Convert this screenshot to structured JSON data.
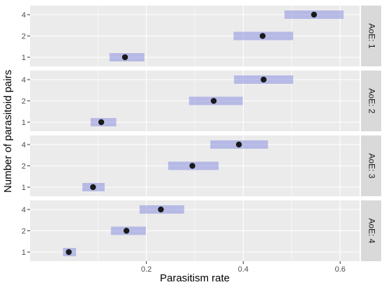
{
  "chart_data": {
    "type": "scatter",
    "xlabel": "Parasitism rate",
    "ylabel": "Number of parasitoid pairs",
    "xlim": [
      -0.04,
      0.64
    ],
    "x_ticks": [
      0.2,
      0.4,
      0.6
    ],
    "x_tick_labels": [
      "0.2",
      "0.4",
      "0.6"
    ],
    "y_categories": [
      "1",
      "2",
      "4"
    ],
    "grid": true,
    "errorbar_color": "#8c8fe0",
    "point_color": "#1a1a1a",
    "panel_color": "#ebebeb",
    "strip_color": "#d9d9d9",
    "facet_position": "right",
    "panels": [
      {
        "strip_label": "AoE: 1",
        "points": [
          {
            "pairs": "4",
            "x": 0.546,
            "lo": 0.485,
            "hi": 0.607
          },
          {
            "pairs": "2",
            "x": 0.44,
            "lo": 0.38,
            "hi": 0.503
          },
          {
            "pairs": "1",
            "x": 0.156,
            "lo": 0.124,
            "hi": 0.196
          }
        ]
      },
      {
        "strip_label": "AoE: 2",
        "points": [
          {
            "pairs": "4",
            "x": 0.442,
            "lo": 0.381,
            "hi": 0.503
          },
          {
            "pairs": "2",
            "x": 0.339,
            "lo": 0.288,
            "hi": 0.399
          },
          {
            "pairs": "1",
            "x": 0.107,
            "lo": 0.085,
            "hi": 0.138
          }
        ]
      },
      {
        "strip_label": "AoE: 3",
        "points": [
          {
            "pairs": "4",
            "x": 0.391,
            "lo": 0.332,
            "hi": 0.451
          },
          {
            "pairs": "2",
            "x": 0.295,
            "lo": 0.245,
            "hi": 0.349
          },
          {
            "pairs": "1",
            "x": 0.09,
            "lo": 0.068,
            "hi": 0.114
          }
        ]
      },
      {
        "strip_label": "AoE: 4",
        "points": [
          {
            "pairs": "4",
            "x": 0.23,
            "lo": 0.186,
            "hi": 0.278
          },
          {
            "pairs": "2",
            "x": 0.159,
            "lo": 0.127,
            "hi": 0.199
          },
          {
            "pairs": "1",
            "x": 0.04,
            "lo": 0.028,
            "hi": 0.055
          }
        ]
      }
    ]
  }
}
